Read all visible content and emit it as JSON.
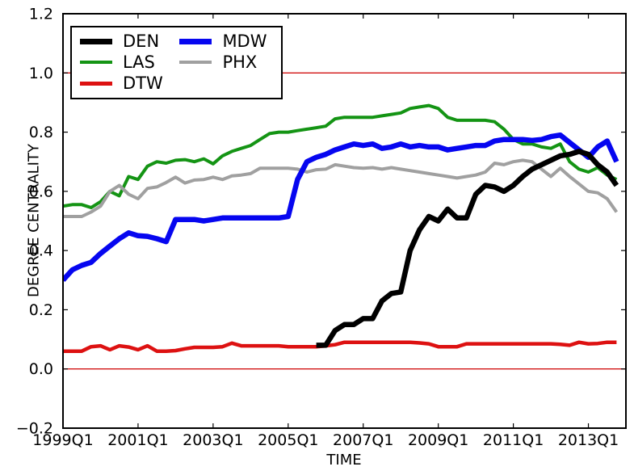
{
  "chart_data": {
    "type": "line",
    "title": "",
    "xlabel": "TIME",
    "ylabel": "DEGREE CENTRALITY",
    "ylim": [
      -0.2,
      1.2
    ],
    "xlim_quarters": [
      0,
      60
    ],
    "grid": false,
    "legend_position": "upper left",
    "background": "#ffffff",
    "axis_color": "#000000",
    "ytick_labels": [
      "−0.2",
      "0.0",
      "0.2",
      "0.4",
      "0.6",
      "0.8",
      "1.0",
      "1.2"
    ],
    "ytick_values": [
      -0.2,
      0.0,
      0.2,
      0.4,
      0.6,
      0.8,
      1.0,
      1.2
    ],
    "xtick_labels": [
      "1999Q1",
      "2001Q1",
      "2003Q1",
      "2005Q1",
      "2007Q1",
      "2009Q1",
      "2011Q1",
      "2013Q1"
    ],
    "xtick_positions": [
      0,
      8,
      16,
      24,
      32,
      40,
      48,
      56
    ],
    "hlines": {
      "values": [
        0.0,
        1.0
      ],
      "color": "#d21414",
      "width": 1.4
    },
    "quarters": [
      "1999Q1",
      "1999Q2",
      "1999Q3",
      "1999Q4",
      "2000Q1",
      "2000Q2",
      "2000Q3",
      "2000Q4",
      "2001Q1",
      "2001Q2",
      "2001Q3",
      "2001Q4",
      "2002Q1",
      "2002Q2",
      "2002Q3",
      "2002Q4",
      "2003Q1",
      "2003Q2",
      "2003Q3",
      "2003Q4",
      "2004Q1",
      "2004Q2",
      "2004Q3",
      "2004Q4",
      "2005Q1",
      "2005Q2",
      "2005Q3",
      "2005Q4",
      "2006Q1",
      "2006Q2",
      "2006Q3",
      "2006Q4",
      "2007Q1",
      "2007Q2",
      "2007Q3",
      "2007Q4",
      "2008Q1",
      "2008Q2",
      "2008Q3",
      "2008Q4",
      "2009Q1",
      "2009Q2",
      "2009Q3",
      "2009Q4",
      "2010Q1",
      "2010Q2",
      "2010Q3",
      "2010Q4",
      "2011Q1",
      "2011Q2",
      "2011Q3",
      "2011Q4",
      "2012Q1",
      "2012Q2",
      "2012Q3",
      "2012Q4",
      "2013Q1",
      "2013Q2",
      "2013Q3",
      "2013Q4"
    ],
    "series": [
      {
        "name": "LAS",
        "color": "#149414",
        "width": 4,
        "values": [
          0.55,
          0.555,
          0.555,
          0.545,
          0.565,
          0.6,
          0.585,
          0.65,
          0.64,
          0.685,
          0.7,
          0.695,
          0.705,
          0.707,
          0.7,
          0.71,
          0.693,
          0.72,
          0.735,
          0.745,
          0.755,
          0.775,
          0.795,
          0.8,
          0.8,
          0.805,
          0.81,
          0.815,
          0.82,
          0.845,
          0.85,
          0.85,
          0.85,
          0.85,
          0.855,
          0.86,
          0.865,
          0.88,
          0.885,
          0.89,
          0.88,
          0.85,
          0.84,
          0.84,
          0.84,
          0.84,
          0.835,
          0.81,
          0.775,
          0.76,
          0.76,
          0.75,
          0.745,
          0.76,
          0.7,
          0.675,
          0.665,
          0.68,
          0.655,
          0.64
        ]
      },
      {
        "name": "PHX",
        "color": "#a0a0a0",
        "width": 4,
        "values": [
          0.515,
          0.515,
          0.515,
          0.53,
          0.55,
          0.6,
          0.62,
          0.59,
          0.575,
          0.61,
          0.615,
          0.63,
          0.648,
          0.628,
          0.638,
          0.64,
          0.648,
          0.64,
          0.652,
          0.655,
          0.66,
          0.678,
          0.678,
          0.678,
          0.678,
          0.675,
          0.665,
          0.673,
          0.675,
          0.69,
          0.685,
          0.68,
          0.678,
          0.68,
          0.675,
          0.68,
          0.675,
          0.67,
          0.665,
          0.66,
          0.655,
          0.65,
          0.645,
          0.65,
          0.655,
          0.665,
          0.695,
          0.69,
          0.7,
          0.705,
          0.7,
          0.675,
          0.65,
          0.678,
          0.65,
          0.625,
          0.6,
          0.595,
          0.575,
          0.53
        ]
      },
      {
        "name": "DTW",
        "color": "#dd1111",
        "width": 4.5,
        "values": [
          0.06,
          0.06,
          0.06,
          0.075,
          0.078,
          0.065,
          0.078,
          0.074,
          0.065,
          0.078,
          0.06,
          0.06,
          0.062,
          0.068,
          0.073,
          0.073,
          0.073,
          0.075,
          0.087,
          0.078,
          0.078,
          0.078,
          0.078,
          0.078,
          0.075,
          0.075,
          0.075,
          0.075,
          0.078,
          0.082,
          0.09,
          0.09,
          0.09,
          0.09,
          0.09,
          0.09,
          0.09,
          0.09,
          0.088,
          0.085,
          0.075,
          0.075,
          0.075,
          0.085,
          0.085,
          0.085,
          0.085,
          0.085,
          0.085,
          0.085,
          0.085,
          0.085,
          0.085,
          0.083,
          0.08,
          0.09,
          0.085,
          0.086,
          0.09,
          0.09
        ]
      },
      {
        "name": "MDW",
        "color": "#0606f0",
        "width": 6.5,
        "values": [
          0.3,
          0.335,
          0.35,
          0.36,
          0.39,
          0.415,
          0.44,
          0.46,
          0.45,
          0.448,
          0.44,
          0.43,
          0.505,
          0.505,
          0.505,
          0.5,
          0.505,
          0.51,
          0.51,
          0.51,
          0.51,
          0.51,
          0.51,
          0.51,
          0.515,
          0.64,
          0.7,
          0.715,
          0.725,
          0.74,
          0.75,
          0.76,
          0.755,
          0.76,
          0.745,
          0.75,
          0.76,
          0.75,
          0.755,
          0.75,
          0.75,
          0.74,
          0.745,
          0.75,
          0.755,
          0.755,
          0.77,
          0.775,
          0.775,
          0.775,
          0.772,
          0.775,
          0.785,
          0.79,
          0.765,
          0.74,
          0.715,
          0.75,
          0.77,
          0.7
        ]
      },
      {
        "name": "DEN",
        "color": "#000000",
        "width": 6.5,
        "values": [
          null,
          null,
          null,
          null,
          null,
          null,
          null,
          null,
          null,
          null,
          null,
          null,
          null,
          null,
          null,
          null,
          null,
          null,
          null,
          null,
          null,
          null,
          null,
          null,
          null,
          null,
          null,
          0.08,
          0.08,
          0.13,
          0.15,
          0.15,
          0.17,
          0.17,
          0.23,
          0.255,
          0.26,
          0.4,
          0.47,
          0.515,
          0.5,
          0.54,
          0.51,
          0.51,
          0.59,
          0.62,
          0.615,
          0.6,
          0.62,
          0.65,
          0.675,
          0.69,
          0.705,
          0.72,
          0.725,
          0.735,
          0.725,
          0.69,
          0.665,
          0.62
        ]
      }
    ],
    "legend": {
      "entries": [
        "DEN",
        "LAS",
        "DTW",
        "MDW",
        "PHX"
      ],
      "columns": [
        [
          "DEN",
          "LAS",
          "DTW"
        ],
        [
          "MDW",
          "PHX"
        ]
      ]
    }
  }
}
